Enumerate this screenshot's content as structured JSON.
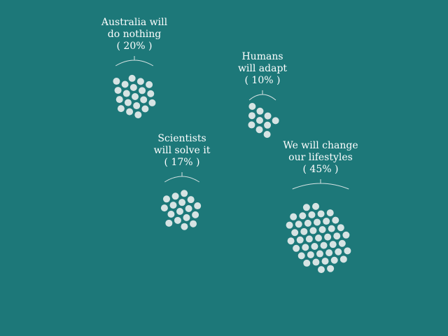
{
  "chart_data": {
    "type": "dots",
    "categories": [
      "Australia will\ndo nothing",
      "Humans\nwill adapt",
      "Scientists\nwill solve it",
      "We will change\nour lifestyles"
    ],
    "values": [
      20,
      10,
      17,
      45
    ],
    "value_labels": [
      "( 20% )",
      "( 10% )",
      "( 17% )",
      "( 45% )"
    ],
    "color": "#d6e3e3"
  }
}
